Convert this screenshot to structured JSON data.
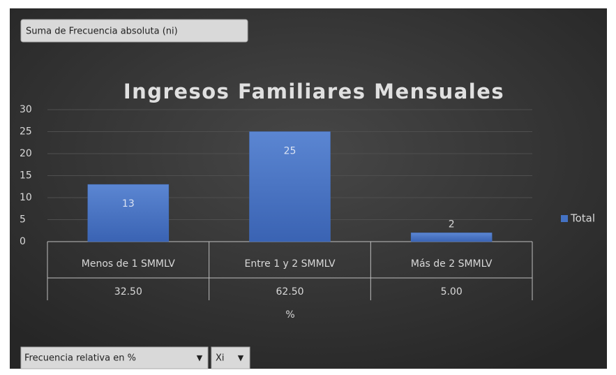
{
  "pivot_buttons": {
    "value_field": "Suma de Frecuencia absoluta (ni)",
    "axis_fields": [
      "Frecuencia relativa en %",
      "Xi"
    ]
  },
  "chart_data": {
    "type": "bar",
    "title": "Ingresos Familiares Mensuales",
    "categories": [
      "Menos de 1 SMMLV",
      "Entre 1 y 2 SMMLV",
      "Más de 2 SMMLV"
    ],
    "category_sublabels": [
      "32.50",
      "62.50",
      "5.00"
    ],
    "xlabel": "%",
    "series": [
      {
        "name": "Total",
        "color": "#4472c4",
        "values": [
          13,
          25,
          2
        ]
      }
    ],
    "ylim": [
      0,
      30
    ],
    "yticks": [
      0,
      5,
      10,
      15,
      20,
      25,
      30
    ],
    "grid": true,
    "legend": "right"
  }
}
